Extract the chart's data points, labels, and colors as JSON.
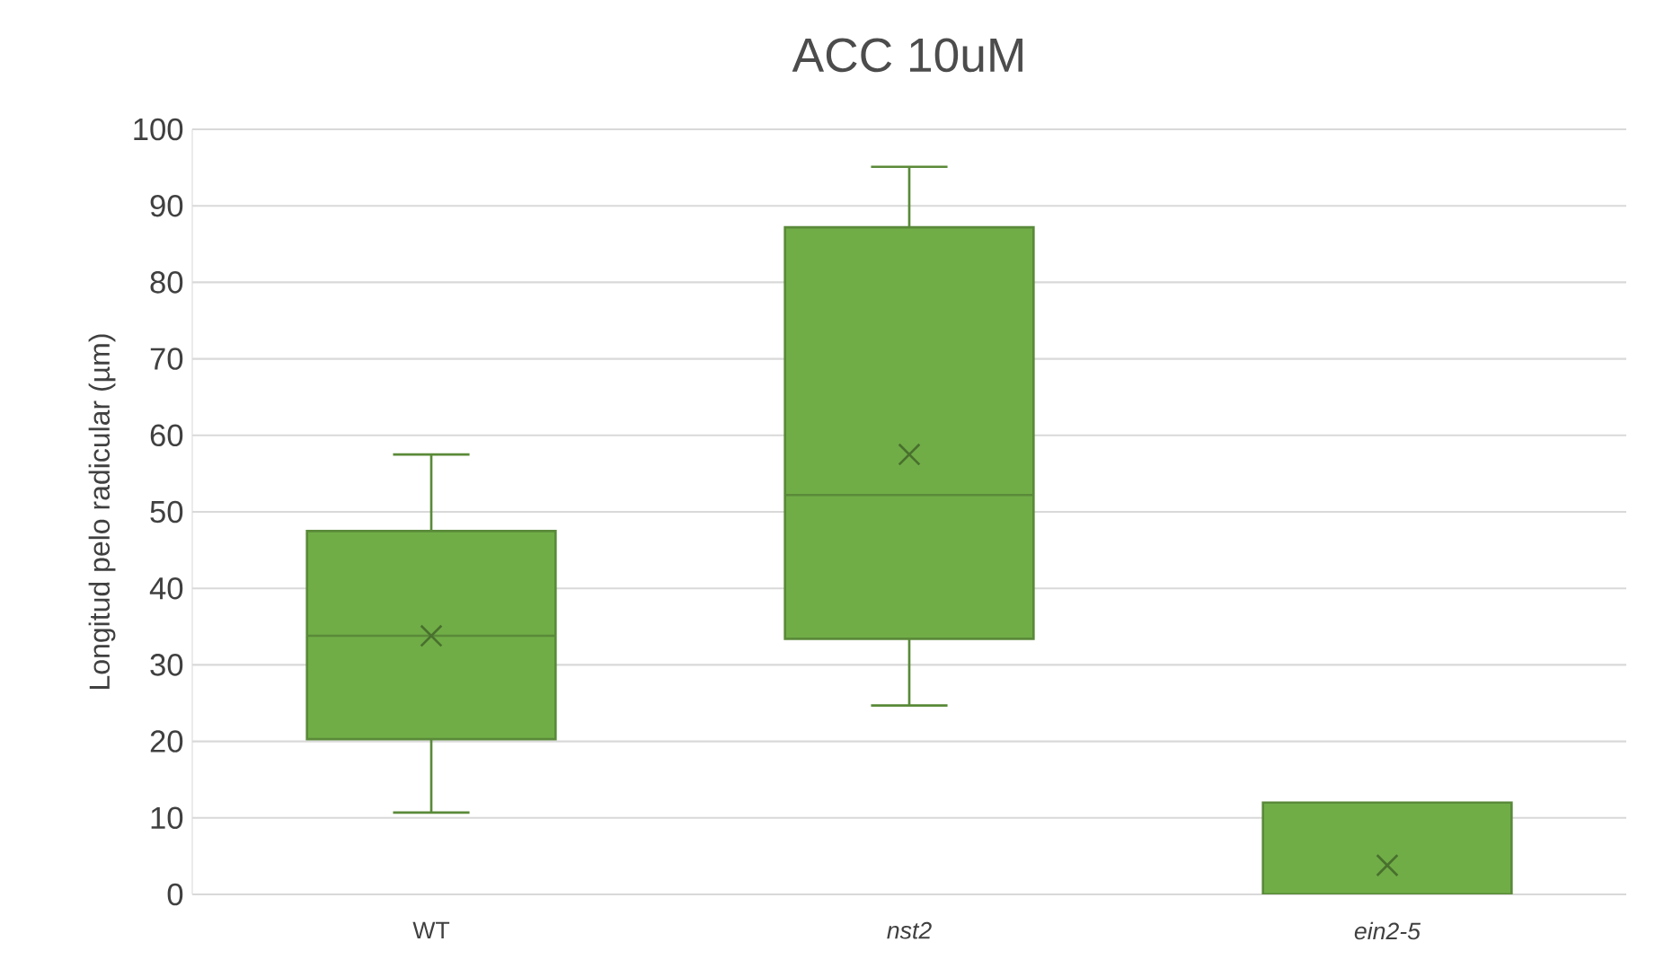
{
  "chart_data": {
    "type": "box",
    "title": "ACC 10uM",
    "ylabel": "Longitud pelo radicular (µm)",
    "categories": [
      "WT",
      "*nst2*",
      "*ein2-5*"
    ],
    "color": "#70ad47",
    "boxes": [
      {
        "low": 10.7,
        "q1": 20.3,
        "median": 33.8,
        "q3": 47.5,
        "high": 57.5,
        "mean": 33.8
      },
      {
        "low": 24.7,
        "q1": 33.4,
        "median": 52.2,
        "q3": 87.2,
        "high": 95.1,
        "mean": 57.5
      },
      {
        "low": 0,
        "q1": 0,
        "median": 0,
        "q3": 12,
        "high": 12,
        "mean": 3.8
      }
    ],
    "ylim": [
      0,
      100
    ],
    "yticks": [
      0,
      10,
      20,
      30,
      40,
      50,
      60,
      70,
      80,
      90,
      100
    ],
    "grid": "y"
  }
}
